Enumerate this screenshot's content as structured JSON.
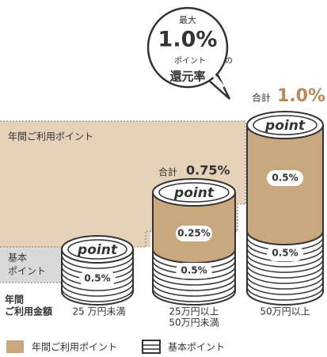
{
  "badge": {
    "top": "最大",
    "rate": "1.0%",
    "middle": "ポイント",
    "particle": "の",
    "bottom": "還元率"
  },
  "totals": [
    {
      "prefix": "合計",
      "value": "0.75%"
    },
    {
      "prefix": "合計",
      "value": "1.0%"
    }
  ],
  "areas": {
    "annual": "年間ご利用ポイント",
    "basic": [
      "基本",
      "ポイント"
    ]
  },
  "coins": [
    {
      "logo": "point",
      "segments": [
        "0.5%"
      ]
    },
    {
      "logo": "point",
      "segments": [
        "0.25%",
        "0.5%"
      ]
    },
    {
      "logo": "point",
      "segments": [
        "0.5%",
        "0.5%"
      ]
    }
  ],
  "axis": {
    "label": [
      "年間",
      "ご利用金額"
    ],
    "tiers": [
      [
        "25 万円未満"
      ],
      [
        "25万円以上",
        "50万円未満"
      ],
      [
        "50万円以上"
      ]
    ]
  },
  "legend": [
    "年間ご利用ポイント",
    "基本ポイント"
  ]
}
